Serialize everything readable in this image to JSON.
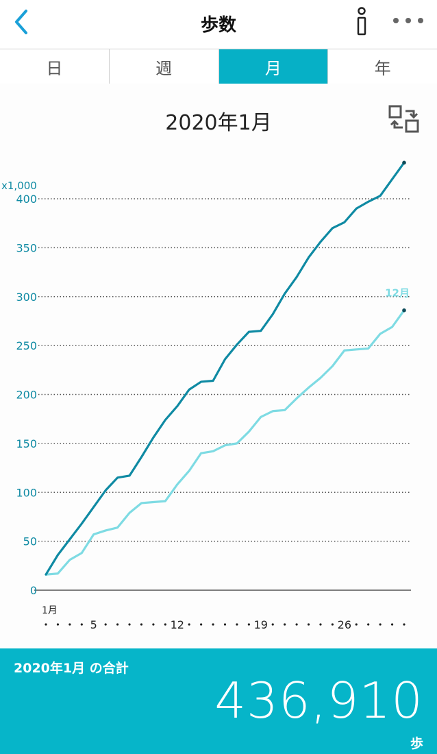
{
  "header": {
    "title": "歩数"
  },
  "tabs": [
    {
      "label": "日",
      "active": false
    },
    {
      "label": "週",
      "active": false
    },
    {
      "label": "月",
      "active": true
    },
    {
      "label": "年",
      "active": false
    }
  ],
  "colors": {
    "accent": "#06b0c6",
    "current_series": "#0f8aa3",
    "previous_series": "#7edbe3",
    "axis_text": "#0f8aa3"
  },
  "period_title": "2020年1月",
  "chart_data": {
    "type": "line",
    "y_unit_label": "x1,000",
    "ylim": [
      0,
      400
    ],
    "yticks": [
      0,
      50,
      100,
      150,
      200,
      250,
      300,
      350,
      400
    ],
    "x_range": [
      1,
      31
    ],
    "x_start_label": "1月",
    "x_tick_labels": [
      {
        "day": 5,
        "label": "5"
      },
      {
        "day": 12,
        "label": "12"
      },
      {
        "day": 19,
        "label": "19"
      },
      {
        "day": 26,
        "label": "26"
      }
    ],
    "grid": true,
    "series": [
      {
        "name": "",
        "color": "#0f8aa3",
        "x": [
          1,
          2,
          3,
          4,
          5,
          6,
          7,
          8,
          9,
          10,
          11,
          12,
          13,
          14,
          15,
          16,
          17,
          18,
          19,
          20,
          21,
          22,
          23,
          24,
          25,
          26,
          27,
          28,
          29,
          30,
          31
        ],
        "y": [
          16,
          36,
          52,
          68,
          85,
          102,
          115,
          117,
          136,
          156,
          174,
          188,
          205,
          213,
          214,
          236,
          251,
          264,
          265,
          282,
          303,
          320,
          340,
          356,
          370,
          376,
          390,
          397,
          403,
          420,
          436.9
        ]
      },
      {
        "name": "12月",
        "color": "#7edbe3",
        "x": [
          1,
          2,
          3,
          4,
          5,
          6,
          7,
          8,
          9,
          10,
          11,
          12,
          13,
          14,
          15,
          16,
          17,
          18,
          19,
          20,
          21,
          22,
          23,
          24,
          25,
          26,
          27,
          28,
          29,
          30,
          31
        ],
        "y": [
          16,
          17,
          31,
          38,
          57,
          61,
          64,
          79,
          89,
          90,
          91,
          108,
          122,
          140,
          142,
          148,
          150,
          162,
          177,
          183,
          184,
          196,
          207,
          217,
          229,
          245,
          246,
          247,
          262,
          269,
          286
        ]
      }
    ]
  },
  "footer": {
    "total_label": "2020年1月 の合計",
    "total_value": "436,910",
    "unit": "歩"
  }
}
